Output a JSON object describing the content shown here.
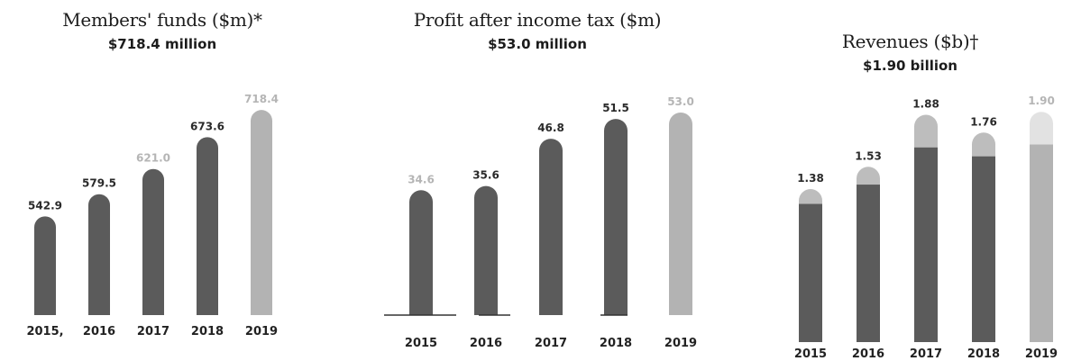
{
  "chart_data": [
    {
      "type": "bar",
      "title": "Members' funds ($m)*",
      "subtitle": "$718.4 million",
      "categories": [
        "2015,",
        "2016",
        "2017",
        "2018",
        "2019"
      ],
      "values": [
        542.9,
        579.5,
        621.0,
        673.6,
        718.4
      ],
      "labels": [
        "542.9",
        "579.5",
        "621.0",
        "673.6",
        "718.4"
      ],
      "colors": {
        "bar": "#5b5b5b",
        "highlight": "#b3b3b3",
        "label_dark": "#2a2a2a",
        "label_light": "#b5b5b5"
      }
    },
    {
      "type": "bar",
      "title": "Profit after income tax ($m)",
      "subtitle": "$53.0 million",
      "categories": [
        "2015",
        "2016",
        "2017",
        "2018",
        "2019"
      ],
      "values": [
        34.6,
        35.6,
        46.8,
        51.5,
        53.0
      ],
      "labels": [
        "34.6",
        "35.6",
        "46.8",
        "51.5",
        "53.0"
      ],
      "colors": {
        "bar": "#5b5b5b",
        "highlight": "#b3b3b3",
        "label_dark": "#2a2a2a",
        "label_light": "#b5b5b5"
      }
    },
    {
      "type": "bar",
      "title": "Revenues ($b)†",
      "subtitle": "$1.90 billion",
      "categories": [
        "2015",
        "2016",
        "2017",
        "2018",
        "2019"
      ],
      "values": [
        1.38,
        1.53,
        1.88,
        1.76,
        1.9
      ],
      "labels": [
        "1.38",
        "1.53",
        "1.88",
        "1.76",
        "1.90"
      ],
      "segment_lower_values": [
        1.28,
        1.41,
        1.66,
        1.6,
        1.68
      ],
      "colors": {
        "bar": "#5b5b5b",
        "cap": "#bdbdbd",
        "highlight": "#b3b3b3",
        "highlight_cap": "#e2e2e2",
        "label_dark": "#2a2a2a",
        "label_light": "#b5b5b5"
      }
    }
  ]
}
